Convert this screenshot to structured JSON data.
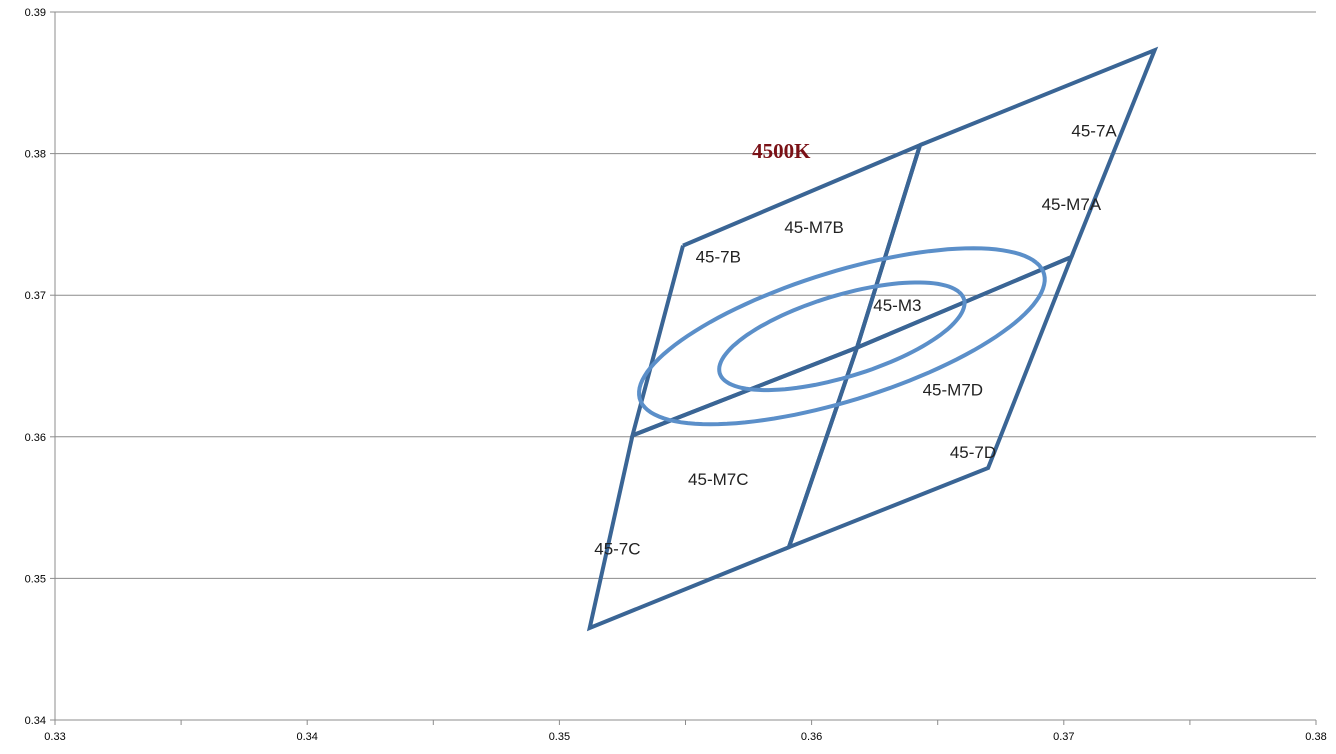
{
  "chart_data": {
    "type": "scatter",
    "title": "",
    "xlabel": "",
    "ylabel": "",
    "xlim": [
      0.33,
      0.38
    ],
    "ylim": [
      0.34,
      0.39
    ],
    "x_ticks": [
      0.33,
      0.335,
      0.34,
      0.345,
      0.35,
      0.355,
      0.36,
      0.365,
      0.37,
      0.375,
      0.38
    ],
    "x_tick_labels": [
      "0.33",
      "",
      "0.34",
      "",
      "0.35",
      "",
      "0.36",
      "",
      "0.37",
      "",
      "0.38"
    ],
    "y_ticks": [
      0.34,
      0.35,
      0.36,
      0.37,
      0.38,
      0.39
    ],
    "y_tick_labels": [
      "0.34",
      "0.35",
      "0.36",
      "0.37",
      "0.38",
      "0.39"
    ],
    "grid": "horizontal",
    "colors": {
      "bin_lines": "#3a6595",
      "ellipses": "#5b8fc9",
      "cct_label": "#7a1116",
      "grid": "#8c8c8c"
    },
    "bins": [
      {
        "name": "45-7B",
        "points": [
          [
            0.3549,
            0.3735
          ],
          [
            0.3643,
            0.3806
          ],
          [
            0.3618,
            0.3663
          ],
          [
            0.3529,
            0.3601
          ],
          [
            0.3549,
            0.3735
          ]
        ]
      },
      {
        "name": "45-7A",
        "points": [
          [
            0.3643,
            0.3806
          ],
          [
            0.3736,
            0.3873
          ],
          [
            0.3703,
            0.3727
          ],
          [
            0.3618,
            0.3663
          ],
          [
            0.3643,
            0.3806
          ]
        ]
      },
      {
        "name": "45-7C",
        "points": [
          [
            0.3529,
            0.3601
          ],
          [
            0.3618,
            0.3663
          ],
          [
            0.3591,
            0.3522
          ],
          [
            0.3512,
            0.3465
          ],
          [
            0.3529,
            0.3601
          ]
        ]
      },
      {
        "name": "45-7D",
        "points": [
          [
            0.3618,
            0.3663
          ],
          [
            0.3703,
            0.3727
          ],
          [
            0.367,
            0.3578
          ],
          [
            0.3591,
            0.3522
          ],
          [
            0.3618,
            0.3663
          ]
        ]
      }
    ],
    "ellipses": [
      {
        "name": "45-M7",
        "center": [
          0.3612,
          0.3671
        ],
        "a": 0.0093,
        "b": 0.0041,
        "angle_deg": 34
      },
      {
        "name": "45-M3",
        "center": [
          0.3612,
          0.3671
        ],
        "a": 0.0056,
        "b": 0.0026,
        "angle_deg": 34
      }
    ],
    "annotations": [
      {
        "text": "4500K",
        "x": 0.3588,
        "y": 0.3797,
        "style": "cct"
      },
      {
        "text": "45-7A",
        "x": 0.3712,
        "y": 0.3812,
        "style": "region"
      },
      {
        "text": "45-M7A",
        "x": 0.3703,
        "y": 0.376,
        "style": "region"
      },
      {
        "text": "45-7B",
        "x": 0.3563,
        "y": 0.3723,
        "style": "region"
      },
      {
        "text": "45-M7B",
        "x": 0.3601,
        "y": 0.3744,
        "style": "region"
      },
      {
        "text": "45-M3",
        "x": 0.3634,
        "y": 0.3689,
        "style": "region"
      },
      {
        "text": "45-M7D",
        "x": 0.3656,
        "y": 0.3629,
        "style": "region"
      },
      {
        "text": "45-7D",
        "x": 0.3664,
        "y": 0.3585,
        "style": "region"
      },
      {
        "text": "45-M7C",
        "x": 0.3563,
        "y": 0.3566,
        "style": "region"
      },
      {
        "text": "45-7C",
        "x": 0.3523,
        "y": 0.3517,
        "style": "region"
      }
    ]
  }
}
